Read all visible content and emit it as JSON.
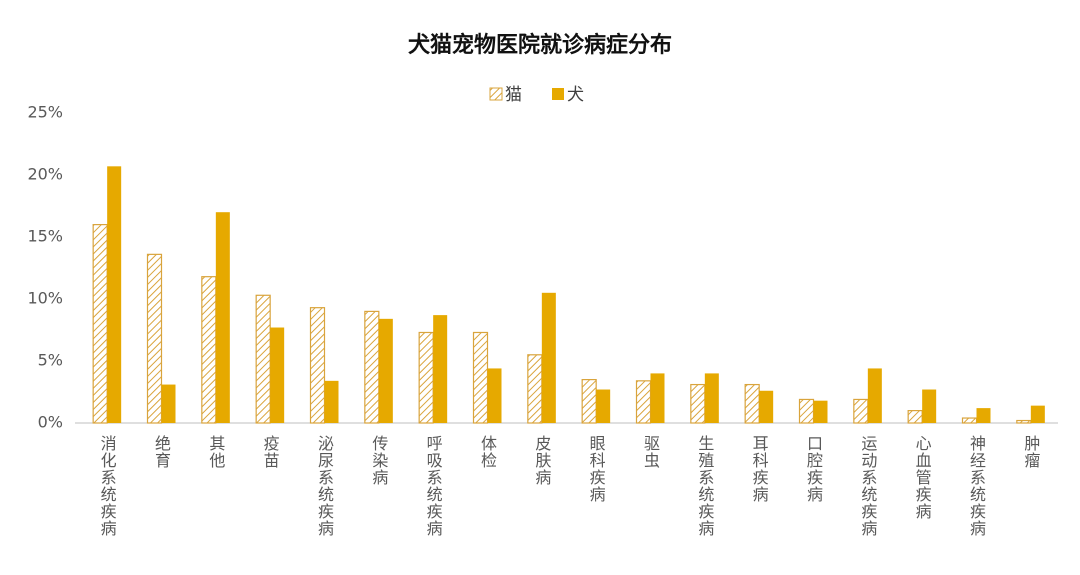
{
  "chart_data": {
    "type": "bar",
    "title": "犬猫宠物医院就诊病症分布",
    "categories": [
      "消化系统疾病",
      "绝育",
      "其他",
      "疫苗",
      "泌尿系统疾病",
      "传染病",
      "呼吸系统疾病",
      "体检",
      "皮肤病",
      "眼科疾病",
      "驱虫",
      "生殖系统疾病",
      "耳科疾病",
      "口腔疾病",
      "运动系统疾病",
      "心血管疾病",
      "神经系统疾病",
      "肿瘤"
    ],
    "series": [
      {
        "name": "猫",
        "color": "#d9a43c",
        "pattern": "hatch",
        "values": [
          16.0,
          13.6,
          11.8,
          10.3,
          9.3,
          9.0,
          7.3,
          7.3,
          5.5,
          3.5,
          3.4,
          3.1,
          3.1,
          1.9,
          1.9,
          1.0,
          0.4,
          0.2
        ]
      },
      {
        "name": "犬",
        "color": "#e6a900",
        "pattern": "solid",
        "values": [
          20.7,
          3.1,
          17.0,
          7.7,
          3.4,
          8.4,
          8.7,
          4.4,
          10.5,
          2.7,
          4.0,
          4.0,
          2.6,
          1.8,
          4.4,
          2.7,
          1.2,
          1.4
        ]
      }
    ],
    "ylim": [
      0,
      25
    ],
    "yticks": [
      {
        "value": 0,
        "label": "0%"
      },
      {
        "value": 5,
        "label": "5%"
      },
      {
        "value": 10,
        "label": "10%"
      },
      {
        "value": 15,
        "label": "15%"
      },
      {
        "value": 20,
        "label": "20%"
      },
      {
        "value": 25,
        "label": "25%"
      }
    ],
    "grid": false,
    "legend": "top"
  }
}
